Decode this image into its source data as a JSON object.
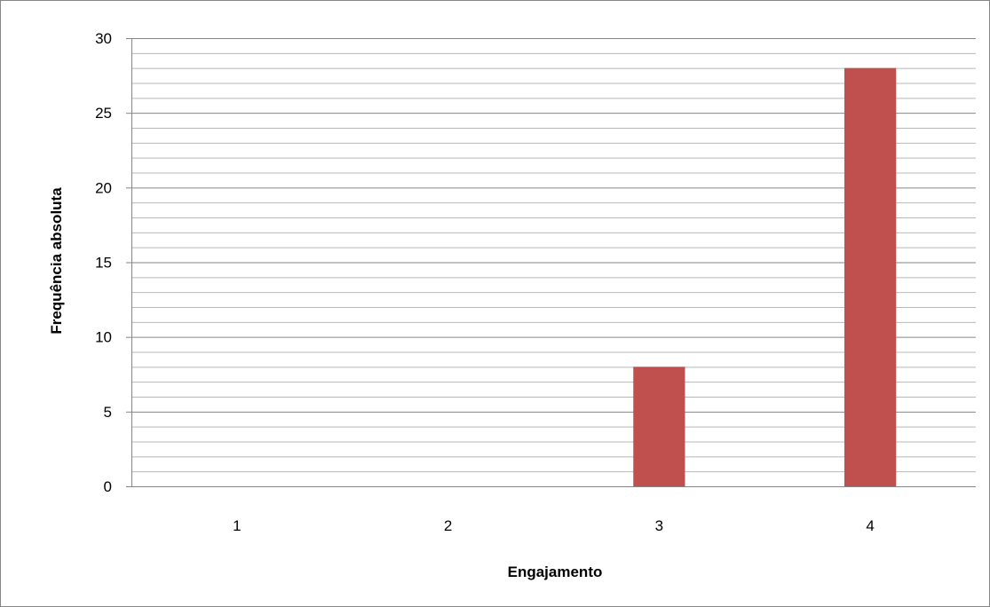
{
  "chart_data": {
    "type": "bar",
    "categories": [
      "1",
      "2",
      "3",
      "4"
    ],
    "values": [
      0,
      0,
      8,
      28
    ],
    "xlabel": "Engajamento",
    "ylabel": "Frequência absoluta",
    "ylim": [
      0,
      30
    ],
    "y_ticks": [
      0,
      5,
      10,
      15,
      20,
      25,
      30
    ],
    "grid": true,
    "minor_grid_step": 1,
    "legend": "none",
    "colors": {
      "bar": "#c0504d",
      "major_grid": "#868686",
      "minor_grid": "#b8b8b8",
      "axis": "#868686",
      "border": "#868686"
    }
  }
}
